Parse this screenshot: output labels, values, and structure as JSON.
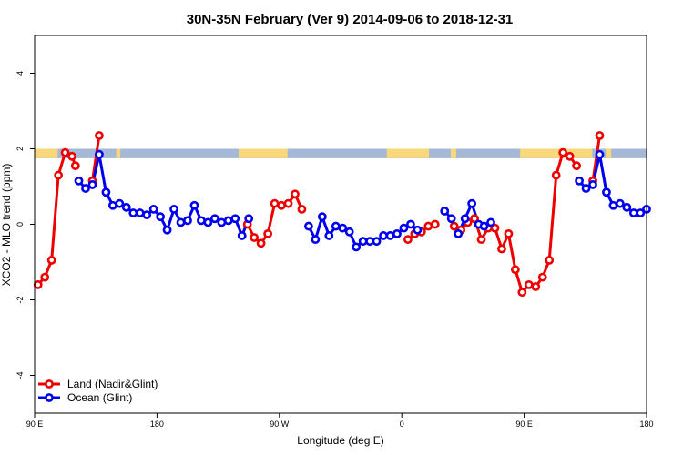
{
  "chart_data": {
    "type": "line",
    "title": "30N-35N February (Ver 9)   2014-09-06 to 2018-12-31",
    "xlabel": "Longitude (deg E)",
    "ylabel": "XCO2 - MLO trend (ppm)",
    "xlim": [
      90,
      540
    ],
    "ylim": [
      -5,
      5
    ],
    "x_tick_values": [
      90,
      180,
      270,
      360,
      450,
      540
    ],
    "x_tick_labels": [
      "90 E",
      "180",
      "90 W",
      "0",
      "90 E",
      "180"
    ],
    "y_tick_values": [
      -4,
      -2,
      0,
      2,
      4
    ],
    "y_tick_labels": [
      "-4",
      "-2",
      "0",
      "2",
      "4"
    ],
    "grid": false,
    "legend_position": "bottom-left",
    "land_ocean_strip": {
      "y_range": [
        1.75,
        2.0
      ],
      "ocean_color": "#a5b8d6",
      "land_color": "#f9d77c",
      "land_longitudes": [
        [
          90,
          107
        ],
        [
          150,
          153
        ],
        [
          240,
          276
        ],
        [
          349,
          380
        ],
        [
          396,
          400
        ],
        [
          447,
          500
        ],
        [
          510,
          514
        ]
      ]
    },
    "series": [
      {
        "name": "Land (Nadir&Glint)",
        "color": "#ee0000",
        "segments": [
          [
            [
              92.5,
              -1.6
            ],
            [
              97.5,
              -1.4
            ],
            [
              102.5,
              -0.95
            ],
            [
              107.5,
              1.3
            ],
            [
              112.5,
              1.9
            ],
            [
              117.5,
              1.8
            ],
            [
              120,
              1.55
            ]
          ],
          [
            [
              132.5,
              1.15
            ],
            [
              137.5,
              2.35
            ]
          ],
          [
            [
              246.5,
              0.0
            ],
            [
              251.5,
              -0.35
            ],
            [
              256.5,
              -0.5
            ],
            [
              261.5,
              -0.25
            ],
            [
              266.5,
              0.55
            ],
            [
              271.5,
              0.5
            ],
            [
              276.5,
              0.55
            ],
            [
              281.5,
              0.8
            ],
            [
              286.5,
              0.4
            ]
          ],
          [
            [
              364.5,
              -0.4
            ],
            [
              369.5,
              -0.25
            ],
            [
              374.5,
              -0.2
            ],
            [
              379.5,
              -0.05
            ],
            [
              384.5,
              0.0
            ]
          ],
          [
            [
              398.5,
              -0.05
            ],
            [
              403.5,
              -0.15
            ],
            [
              408.5,
              0.05
            ],
            [
              413.5,
              0.15
            ],
            [
              418.5,
              -0.4
            ],
            [
              423.5,
              -0.1
            ],
            [
              428.5,
              -0.1
            ],
            [
              433.5,
              -0.65
            ],
            [
              438.5,
              -0.25
            ],
            [
              443.5,
              -1.2
            ],
            [
              448.5,
              -1.8
            ],
            [
              453.5,
              -1.6
            ],
            [
              458.5,
              -1.65
            ],
            [
              463.5,
              -1.4
            ],
            [
              468.5,
              -0.95
            ],
            [
              473.5,
              1.3
            ],
            [
              478.5,
              1.9
            ],
            [
              483.5,
              1.8
            ],
            [
              488.5,
              1.55
            ]
          ],
          [
            [
              500.5,
              1.15
            ],
            [
              505.5,
              2.35
            ]
          ]
        ]
      },
      {
        "name": "Ocean (Glint)",
        "color": "#0000ee",
        "segments": [
          [
            [
              122.5,
              1.15
            ],
            [
              127.5,
              0.95
            ],
            [
              132.5,
              1.05
            ],
            [
              137.5,
              1.85
            ],
            [
              142.5,
              0.85
            ],
            [
              147.5,
              0.5
            ],
            [
              152.5,
              0.55
            ],
            [
              157.5,
              0.45
            ],
            [
              162.5,
              0.3
            ],
            [
              167.5,
              0.3
            ],
            [
              172.5,
              0.25
            ],
            [
              177.5,
              0.4
            ],
            [
              182.5,
              0.2
            ],
            [
              187.5,
              -0.15
            ],
            [
              192.5,
              0.4
            ],
            [
              197.5,
              0.05
            ],
            [
              202.5,
              0.1
            ],
            [
              207.5,
              0.5
            ],
            [
              212.5,
              0.1
            ],
            [
              217.5,
              0.05
            ],
            [
              222.5,
              0.15
            ],
            [
              227.5,
              0.05
            ],
            [
              232.5,
              0.1
            ],
            [
              237.5,
              0.15
            ],
            [
              242.5,
              -0.3
            ],
            [
              247.5,
              0.15
            ]
          ],
          [
            [
              291.5,
              -0.05
            ],
            [
              296.5,
              -0.4
            ],
            [
              301.5,
              0.2
            ],
            [
              306.5,
              -0.3
            ],
            [
              311.5,
              -0.05
            ],
            [
              316.5,
              -0.1
            ],
            [
              321.5,
              -0.2
            ],
            [
              326.5,
              -0.6
            ],
            [
              331.5,
              -0.45
            ],
            [
              336.5,
              -0.45
            ],
            [
              341.5,
              -0.45
            ],
            [
              346.5,
              -0.3
            ],
            [
              351.5,
              -0.3
            ],
            [
              356.5,
              -0.25
            ],
            [
              361.5,
              -0.1
            ],
            [
              366.5,
              0.0
            ],
            [
              371.5,
              -0.15
            ]
          ],
          [
            [
              391.5,
              0.35
            ],
            [
              396.5,
              0.15
            ],
            [
              401.5,
              -0.25
            ],
            [
              406.5,
              0.15
            ],
            [
              411.5,
              0.55
            ],
            [
              416.5,
              0.0
            ]
          ],
          [
            [
              420.5,
              -0.05
            ],
            [
              425.5,
              0.05
            ]
          ],
          [
            [
              490.5,
              1.15
            ],
            [
              495.5,
              0.95
            ],
            [
              500.5,
              1.05
            ],
            [
              505.5,
              1.85
            ],
            [
              510.5,
              0.85
            ],
            [
              515.5,
              0.5
            ],
            [
              520.5,
              0.55
            ],
            [
              525.5,
              0.45
            ],
            [
              530.5,
              0.3
            ],
            [
              535.5,
              0.3
            ],
            [
              540,
              0.4
            ]
          ]
        ]
      }
    ]
  }
}
